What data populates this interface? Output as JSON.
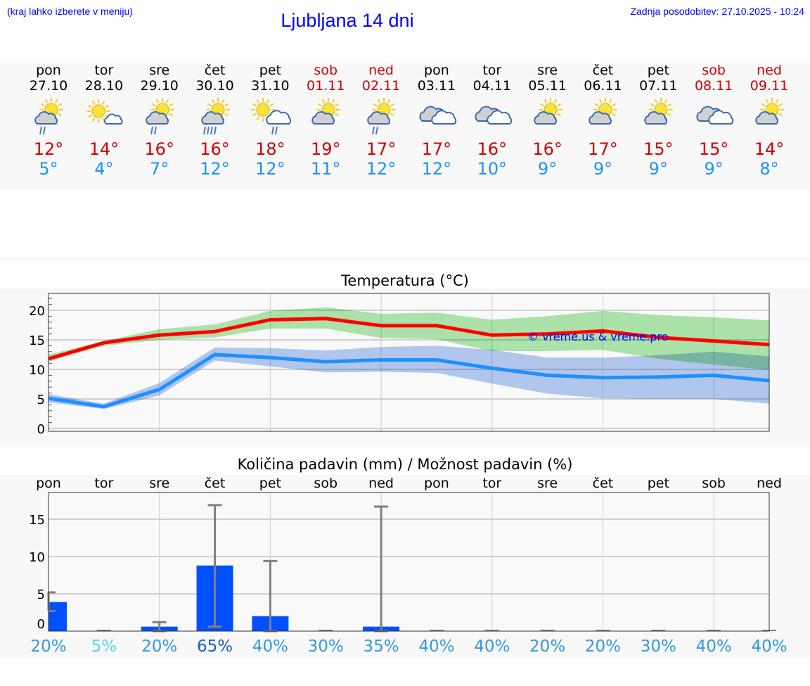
{
  "header": {
    "hint": "(kraj lahko izberete v meniju)",
    "title": "Ljubljana 14 dni",
    "updated": "Zadnja posodobitev: 27.10.2025 - 10:24"
  },
  "days": [
    {
      "day": "pon",
      "date": "27.10",
      "weekend": false,
      "icon": "sun-cloud-rain",
      "max": "12°",
      "min": "5°"
    },
    {
      "day": "tor",
      "date": "28.10",
      "weekend": false,
      "icon": "sun-small-cloud",
      "max": "14°",
      "min": "4°"
    },
    {
      "day": "sre",
      "date": "29.10",
      "weekend": false,
      "icon": "sun-cloud-rain",
      "max": "16°",
      "min": "7°"
    },
    {
      "day": "čet",
      "date": "30.10",
      "weekend": false,
      "icon": "sun-cloud-heavy-rain",
      "max": "16°",
      "min": "12°"
    },
    {
      "day": "pet",
      "date": "31.10",
      "weekend": false,
      "icon": "sun-white-cloud-rain",
      "max": "18°",
      "min": "12°"
    },
    {
      "day": "sob",
      "date": "01.11",
      "weekend": true,
      "icon": "sun-cloud",
      "max": "19°",
      "min": "11°"
    },
    {
      "day": "ned",
      "date": "02.11",
      "weekend": true,
      "icon": "sun-cloud-rain",
      "max": "17°",
      "min": "12°"
    },
    {
      "day": "pon",
      "date": "03.11",
      "weekend": false,
      "icon": "overcast",
      "max": "17°",
      "min": "12°"
    },
    {
      "day": "tor",
      "date": "04.11",
      "weekend": false,
      "icon": "overcast",
      "max": "16°",
      "min": "10°"
    },
    {
      "day": "sre",
      "date": "05.11",
      "weekend": false,
      "icon": "sun-cloud",
      "max": "16°",
      "min": "9°"
    },
    {
      "day": "čet",
      "date": "06.11",
      "weekend": false,
      "icon": "sun-cloud",
      "max": "17°",
      "min": "9°"
    },
    {
      "day": "pet",
      "date": "07.11",
      "weekend": false,
      "icon": "sun-cloud",
      "max": "15°",
      "min": "9°"
    },
    {
      "day": "sob",
      "date": "08.11",
      "weekend": true,
      "icon": "overcast",
      "max": "15°",
      "min": "9°"
    },
    {
      "day": "ned",
      "date": "09.11",
      "weekend": true,
      "icon": "sun-cloud",
      "max": "14°",
      "min": "8°"
    }
  ],
  "colors": {
    "max": "#ff0000",
    "max_band": "#aee8ad",
    "min": "#1e90ff",
    "min_band": "#adc6f2",
    "bar": "#0050ff",
    "err": "#808080"
  },
  "chart_data": [
    {
      "type": "line",
      "title": "Temperatura (°C)",
      "ylim": [
        0,
        23
      ],
      "yticks": [
        "0",
        "5",
        "10",
        "15",
        "20"
      ],
      "watermark": "© vreme.us & vreme.pro",
      "x": [
        "27.10",
        "28.10",
        "29.10",
        "30.10",
        "31.10",
        "01.11",
        "02.11",
        "03.11",
        "04.11",
        "05.11",
        "06.11",
        "07.11",
        "08.11",
        "09.11"
      ],
      "series": [
        {
          "name": "max",
          "values": [
            11.8,
            14.5,
            15.8,
            16.4,
            18.4,
            18.6,
            17.4,
            17.4,
            15.8,
            16.0,
            16.5,
            15.4,
            14.8,
            14.2
          ],
          "band_upper": [
            12.5,
            14.8,
            16.8,
            17.6,
            19.9,
            20.5,
            19.4,
            19.6,
            18.4,
            19.0,
            19.9,
            19.2,
            18.8,
            18.3
          ],
          "band_lower": [
            11.3,
            14.0,
            15.0,
            15.4,
            16.9,
            16.9,
            15.3,
            15.1,
            13.1,
            13.1,
            13.3,
            11.8,
            10.8,
            9.9
          ]
        },
        {
          "name": "min",
          "values": [
            5.1,
            3.7,
            6.6,
            12.5,
            12.0,
            11.3,
            11.6,
            11.6,
            10.2,
            9.0,
            8.6,
            8.7,
            9.0,
            8.1
          ],
          "band_upper": [
            5.8,
            4.2,
            7.7,
            13.7,
            13.6,
            13.2,
            13.8,
            14.0,
            13.3,
            12.0,
            12.0,
            12.4,
            13.0,
            12.2
          ],
          "band_lower": [
            4.4,
            3.3,
            5.6,
            11.5,
            10.5,
            9.5,
            9.6,
            9.4,
            7.6,
            5.9,
            5.1,
            5.0,
            5.0,
            4.2
          ]
        }
      ]
    },
    {
      "type": "bar",
      "title": "Količina padavin (mm) / Možnost padavin (%)",
      "ylim": [
        0,
        18.5
      ],
      "yticks": [
        "0",
        "5",
        "10",
        "15"
      ],
      "categories": [
        "pon",
        "tor",
        "sre",
        "čet",
        "pet",
        "sob",
        "ned",
        "pon",
        "tor",
        "sre",
        "čet",
        "pet",
        "sob",
        "ned"
      ],
      "values": [
        3.9,
        0,
        0.6,
        8.8,
        2.0,
        0,
        0.6,
        0,
        0,
        0,
        0,
        0,
        0,
        0
      ],
      "err_low": [
        2.7,
        0,
        0,
        0.6,
        0,
        0,
        0,
        0,
        0,
        0,
        0,
        0,
        0,
        0
      ],
      "err_high": [
        5.2,
        0,
        1.2,
        16.9,
        9.4,
        0,
        16.7,
        0,
        0,
        0,
        0,
        0,
        0,
        0
      ],
      "probability": [
        "20%",
        "5%",
        "20%",
        "65%",
        "40%",
        "30%",
        "35%",
        "40%",
        "40%",
        "20%",
        "20%",
        "30%",
        "40%",
        "40%"
      ],
      "probability_colors": [
        "#3399dd",
        "#55d5ee",
        "#3399dd",
        "#1a5fb8",
        "#3399dd",
        "#3399dd",
        "#3399dd",
        "#3399dd",
        "#3399dd",
        "#3399dd",
        "#3399dd",
        "#3399dd",
        "#3399dd",
        "#3399dd"
      ]
    }
  ]
}
